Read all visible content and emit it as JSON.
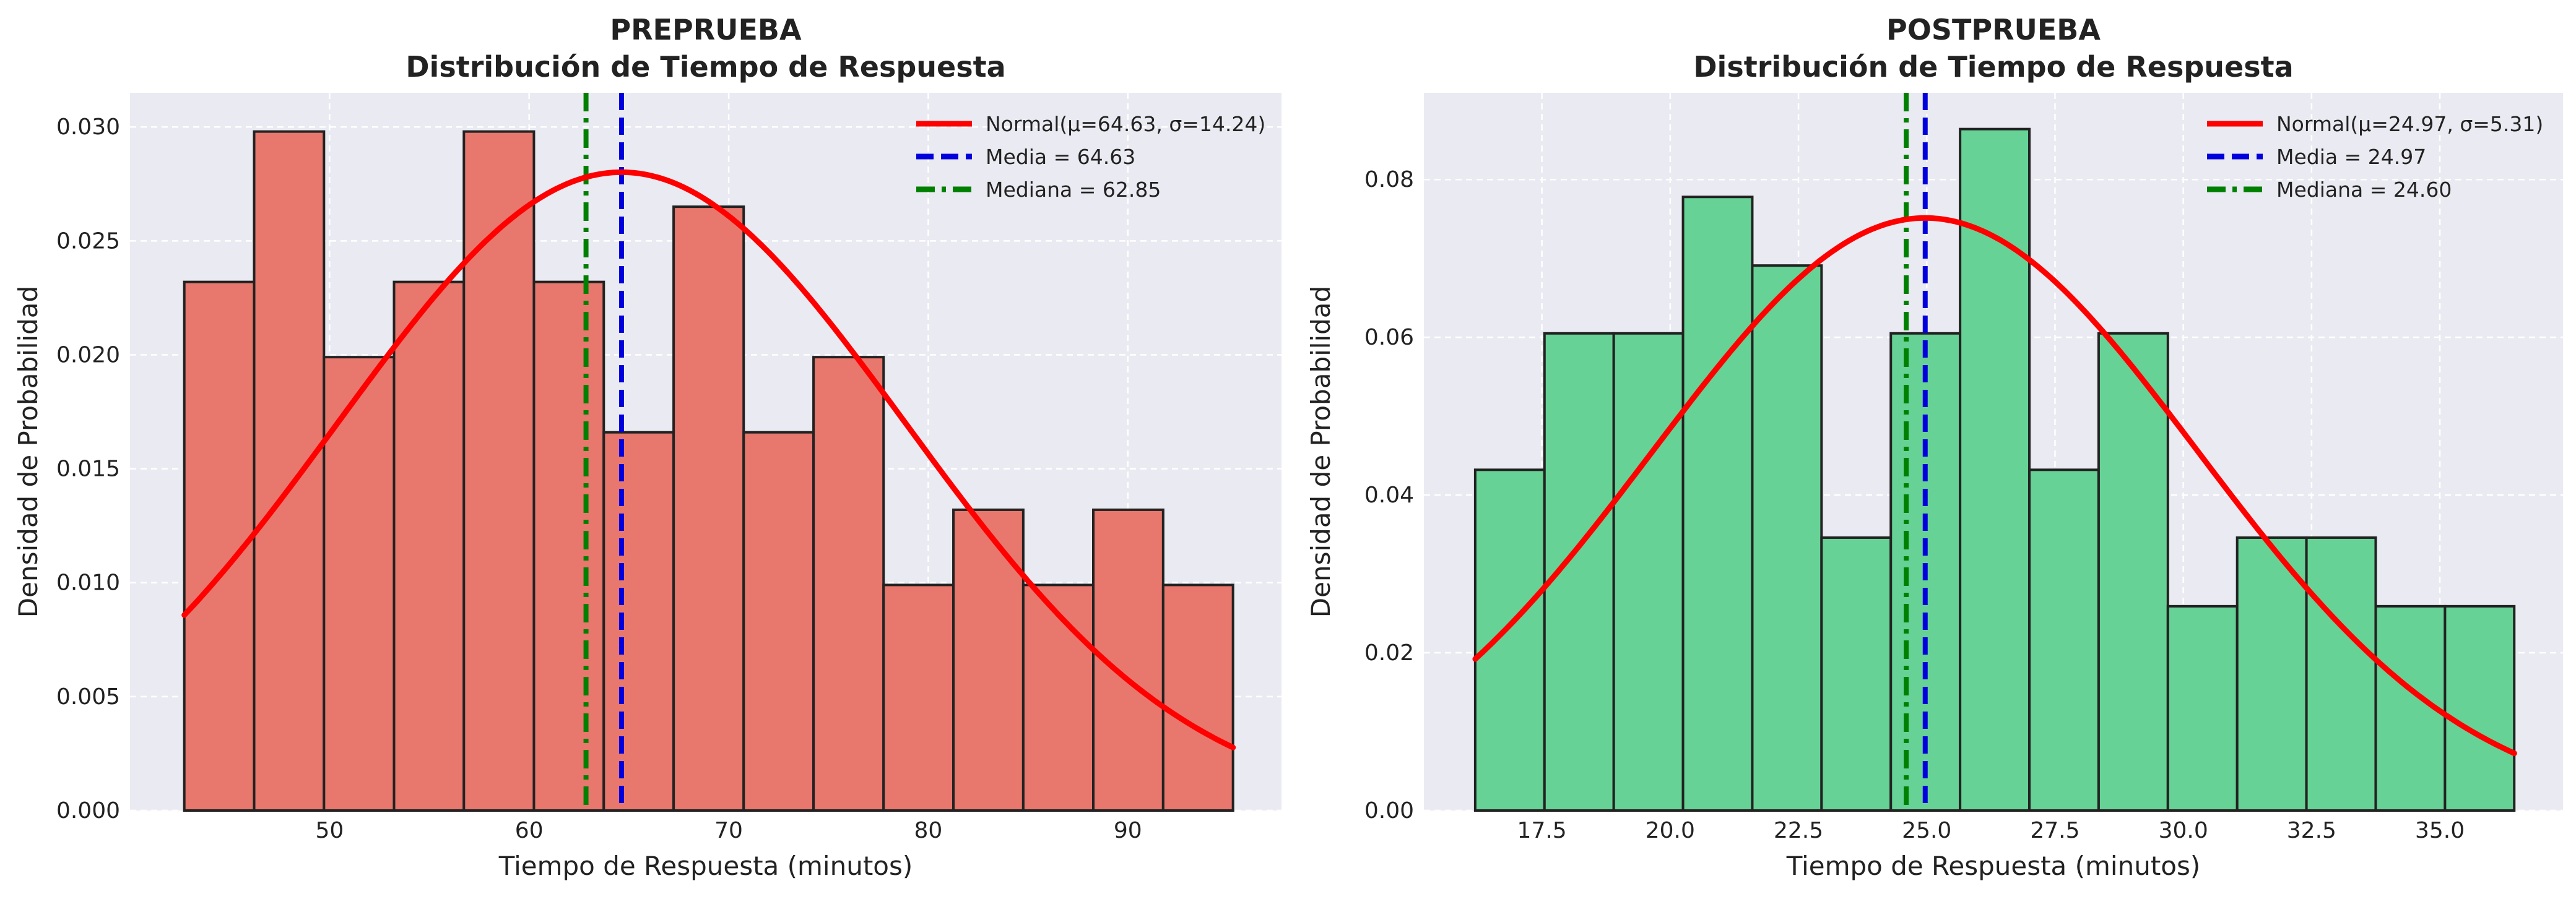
{
  "colors": {
    "plot_bg": "#EAEAF2",
    "grid": "#FFFFFF",
    "normal_curve": "#FF0000",
    "mean_line": "#0000DD",
    "median_line": "#008000",
    "bar_edge": "#222222",
    "text": "#222222"
  },
  "chart_data": [
    {
      "type": "bar",
      "subtype": "histogram",
      "title_line1": "PREPRUEBA",
      "title_line2": "Distribución de Tiempo de Respuesta",
      "xlabel": "Tiempo de Respuesta (minutos)",
      "ylabel": "Densidad de Probabilidad",
      "bar_color": "#E8776D",
      "xlim": [
        40.0,
        97.7
      ],
      "ylim": [
        0,
        0.0315
      ],
      "xticks": [
        50,
        60,
        70,
        80,
        90
      ],
      "xtick_labels": [
        "50",
        "60",
        "70",
        "80",
        "90"
      ],
      "yticks": [
        0.0,
        0.005,
        0.01,
        0.015,
        0.02,
        0.025,
        0.03
      ],
      "ytick_labels": [
        "0.000",
        "0.005",
        "0.010",
        "0.015",
        "0.020",
        "0.025",
        "0.030"
      ],
      "grid": true,
      "bin_edges": [
        42.72,
        46.22,
        49.72,
        53.23,
        56.73,
        60.24,
        63.74,
        67.24,
        70.75,
        74.25,
        77.76,
        81.26,
        84.76,
        88.27,
        91.77,
        95.27
      ],
      "densities": [
        0.0232,
        0.0298,
        0.0199,
        0.0232,
        0.0298,
        0.0232,
        0.0166,
        0.0265,
        0.0166,
        0.0199,
        0.0099,
        0.0132,
        0.0099,
        0.0132,
        0.0099
      ],
      "normal": {
        "mu": 64.63,
        "sigma": 14.24
      },
      "mean": 64.63,
      "median": 62.85,
      "legend_position": "upper right",
      "legend": [
        "Normal(μ=64.63, σ=14.24)",
        "Media = 64.63",
        "Mediana = 62.85"
      ]
    },
    {
      "type": "bar",
      "subtype": "histogram",
      "title_line1": "POSTPRUEBA",
      "title_line2": "Distribución de Tiempo de Respuesta",
      "xlabel": "Tiempo de Respuesta (minutos)",
      "ylabel": "Densidad de Probabilidad",
      "bar_color": "#66D295",
      "xlim": [
        15.2,
        37.4
      ],
      "ylim": [
        0,
        0.091
      ],
      "xticks": [
        17.5,
        20.0,
        22.5,
        25.0,
        27.5,
        30.0,
        32.5,
        35.0
      ],
      "xtick_labels": [
        "17.5",
        "20.0",
        "22.5",
        "25.0",
        "27.5",
        "30.0",
        "32.5",
        "35.0"
      ],
      "yticks": [
        0.0,
        0.02,
        0.04,
        0.06,
        0.08
      ],
      "ytick_labels": [
        "0.00",
        "0.02",
        "0.04",
        "0.06",
        "0.08"
      ],
      "grid": true,
      "bin_edges": [
        16.2,
        17.55,
        18.9,
        20.25,
        21.6,
        22.95,
        24.3,
        25.65,
        27.0,
        28.35,
        29.7,
        31.05,
        32.4,
        33.75,
        35.1,
        36.45
      ],
      "densities": [
        0.0432,
        0.0605,
        0.0605,
        0.0778,
        0.0691,
        0.0346,
        0.0605,
        0.0864,
        0.0432,
        0.0605,
        0.0259,
        0.0346,
        0.0346,
        0.0259,
        0.0259
      ],
      "normal": {
        "mu": 24.97,
        "sigma": 5.31
      },
      "mean": 24.97,
      "median": 24.6,
      "legend_position": "upper right",
      "legend": [
        "Normal(μ=24.97, σ=5.31)",
        "Media = 24.97",
        "Mediana = 24.60"
      ]
    }
  ]
}
